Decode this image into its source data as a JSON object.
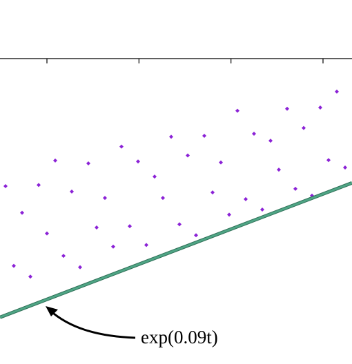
{
  "chart_data": {
    "type": "scatter",
    "log_y": true,
    "xlim": [
      4.9,
      43.15
    ],
    "ylim": [
      0.47,
      1170
    ],
    "xticks": [
      10,
      20,
      30,
      40
    ],
    "series": [
      {
        "type": "scatter",
        "color": "#8b22d6",
        "x": [
          5.5,
          6.4,
          7.3,
          8.2,
          9.1,
          10.0,
          10.9,
          11.8,
          12.7,
          13.6,
          14.5,
          15.4,
          16.3,
          17.2,
          18.1,
          19.0,
          19.9,
          20.8,
          21.7,
          22.6,
          23.5,
          24.4,
          25.3,
          26.2,
          27.1,
          28.0,
          28.9,
          29.8,
          30.7,
          31.6,
          32.5,
          33.4,
          34.3,
          35.2,
          36.1,
          37.0,
          37.9,
          38.8,
          39.7,
          40.6,
          41.5,
          42.4
        ],
        "values": [
          44.7,
          5.8,
          22.6,
          4.4,
          46,
          13.3,
          86,
          7.5,
          38.9,
          5.6,
          80,
          15.5,
          33,
          9.5,
          123,
          16,
          84,
          9.9,
          57,
          33,
          158,
          16.8,
          98,
          12.7,
          162,
          38,
          82,
          21.5,
          308,
          32,
          171,
          24.5,
          143,
          68,
          324,
          41.7,
          198,
          35,
          334,
          87,
          503,
          72
        ]
      },
      {
        "type": "line",
        "color": "#4fa585",
        "x": [
          4.9,
          43.15
        ],
        "values": [
          1.554,
          48.5
        ]
      }
    ],
    "annotations": [
      {
        "text": "exp(0.09t)"
      }
    ]
  }
}
